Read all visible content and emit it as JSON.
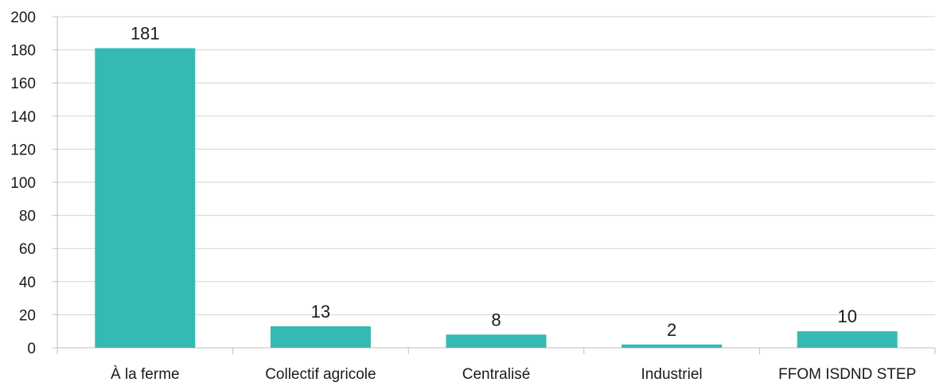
{
  "chart_data": {
    "type": "bar",
    "categories": [
      "À la ferme",
      "Collectif agricole",
      "Centralisé",
      "Industriel",
      "FFOM ISDND STEP"
    ],
    "values": [
      181,
      13,
      8,
      2,
      10
    ],
    "data_labels": [
      "181",
      "13",
      "8",
      "2",
      "10"
    ],
    "title": "",
    "xlabel": "",
    "ylabel": "",
    "ylim": [
      0,
      200
    ],
    "yticks": [
      0,
      20,
      40,
      60,
      80,
      100,
      120,
      140,
      160,
      180,
      200
    ],
    "ytick_labels": [
      "0",
      "20",
      "40",
      "60",
      "80",
      "100",
      "120",
      "140",
      "160",
      "180",
      "200"
    ],
    "grid": true,
    "legend": "none",
    "bar_color": "#35bab3",
    "grid_color": "#d3d3d3",
    "axis_color": "#bfbfbf"
  }
}
